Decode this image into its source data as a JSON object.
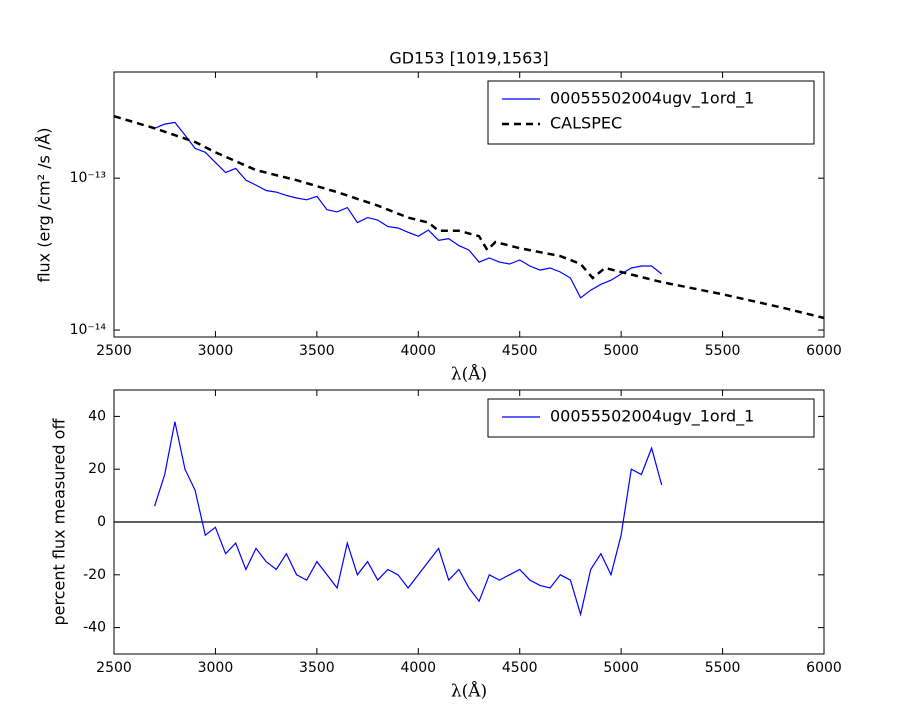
{
  "chart_data": [
    {
      "type": "line",
      "title": "GD153 [1019,1563]",
      "xlabel": "λ(Å)",
      "ylabel": "flux (erg /cm²  /s /Å)",
      "xlim": [
        2500,
        6000
      ],
      "xticks": [
        2500,
        3000,
        3500,
        4000,
        4500,
        5000,
        5500,
        6000
      ],
      "ylim": [
        9e-15,
        5e-13
      ],
      "yscale": "log",
      "yticks": [
        {
          "value": 1e-14,
          "label": "10⁻¹⁴"
        },
        {
          "value": 1e-13,
          "label": "10⁻¹³"
        }
      ],
      "legend": "upper right",
      "series": [
        {
          "name": "00055502004ugv_1ord_1",
          "color": "#0000ff",
          "linestyle": "solid",
          "x": [
            2700,
            2750,
            2800,
            2850,
            2900,
            2950,
            3000,
            3050,
            3100,
            3150,
            3200,
            3250,
            3300,
            3350,
            3400,
            3450,
            3500,
            3550,
            3600,
            3650,
            3700,
            3750,
            3800,
            3850,
            3900,
            3950,
            4000,
            4050,
            4100,
            4150,
            4200,
            4250,
            4300,
            4350,
            4400,
            4450,
            4500,
            4550,
            4600,
            4650,
            4700,
            4750,
            4800,
            4850,
            4900,
            4950,
            5000,
            5050,
            5100,
            5150,
            5200
          ],
          "values": [
            2.13e-13,
            2.27e-13,
            2.33e-13,
            1.92e-13,
            1.57e-13,
            1.48e-13,
            1.27e-13,
            1.09e-13,
            1.16e-13,
            9.7e-14,
            9e-14,
            8.3e-14,
            8.1e-14,
            7.7e-14,
            7.4e-14,
            7.2e-14,
            7.6e-14,
            6.2e-14,
            6e-14,
            6.4e-14,
            5.1e-14,
            5.5e-14,
            5.3e-14,
            4.8e-14,
            4.7e-14,
            4.4e-14,
            4.15e-14,
            4.55e-14,
            3.9e-14,
            4e-14,
            3.6e-14,
            3.36e-14,
            2.8e-14,
            2.98e-14,
            2.8e-14,
            2.72e-14,
            2.89e-14,
            2.64e-14,
            2.48e-14,
            2.56e-14,
            2.41e-14,
            2.2e-14,
            1.63e-14,
            1.83e-14,
            2e-14,
            2.13e-14,
            2.34e-14,
            2.56e-14,
            2.64e-14,
            2.64e-14,
            2.34e-14
          ]
        },
        {
          "name": "CALSPEC",
          "color": "#000000",
          "linestyle": "dashed",
          "x": [
            2500,
            2700,
            2900,
            3000,
            3200,
            3400,
            3600,
            3800,
            3950,
            4050,
            4100,
            4200,
            4300,
            4340,
            4380,
            4500,
            4700,
            4800,
            4860,
            4920,
            5000,
            5200,
            5500,
            5800,
            6000
          ],
          "values": [
            2.56e-13,
            2.13e-13,
            1.73e-13,
            1.48e-13,
            1.13e-13,
            9.7e-14,
            8.1e-14,
            6.6e-14,
            5.5e-14,
            5.1e-14,
            4.5e-14,
            4.5e-14,
            4.15e-14,
            3.36e-14,
            3.8e-14,
            3.46e-14,
            3.07e-14,
            2.72e-14,
            2.2e-14,
            2.56e-14,
            2.41e-14,
            2.07e-14,
            1.72e-14,
            1.4e-14,
            1.2e-14
          ]
        }
      ]
    },
    {
      "type": "line",
      "xlabel": "λ(Å)",
      "ylabel": "percent flux measured off",
      "xlim": [
        2500,
        6000
      ],
      "xticks": [
        2500,
        3000,
        3500,
        4000,
        4500,
        5000,
        5500,
        6000
      ],
      "ylim": [
        -50,
        50
      ],
      "yticks": [
        -40,
        -20,
        0,
        20,
        40
      ],
      "hline": 0,
      "legend": "upper right",
      "series": [
        {
          "name": "00055502004ugv_1ord_1",
          "color": "#0000ff",
          "linestyle": "solid",
          "x": [
            2700,
            2750,
            2800,
            2850,
            2900,
            2950,
            3000,
            3050,
            3100,
            3150,
            3200,
            3250,
            3300,
            3350,
            3400,
            3450,
            3500,
            3550,
            3600,
            3650,
            3700,
            3750,
            3800,
            3850,
            3900,
            3950,
            4000,
            4050,
            4100,
            4150,
            4200,
            4250,
            4300,
            4350,
            4400,
            4450,
            4500,
            4550,
            4600,
            4650,
            4700,
            4750,
            4800,
            4850,
            4900,
            4950,
            5000,
            5050,
            5100,
            5150,
            5200
          ],
          "values": [
            6,
            18,
            38,
            20,
            12,
            -5,
            -2,
            -12,
            -8,
            -18,
            -10,
            -15,
            -18,
            -12,
            -20,
            -22,
            -15,
            -20,
            -25,
            -8,
            -20,
            -15,
            -22,
            -18,
            -20,
            -25,
            -20,
            -15,
            -10,
            -22,
            -18,
            -25,
            -30,
            -20,
            -22,
            -20,
            -18,
            -22,
            -24,
            -25,
            -20,
            -22,
            -35,
            -18,
            -12,
            -20,
            -5,
            20,
            18,
            28,
            14
          ]
        }
      ]
    }
  ]
}
